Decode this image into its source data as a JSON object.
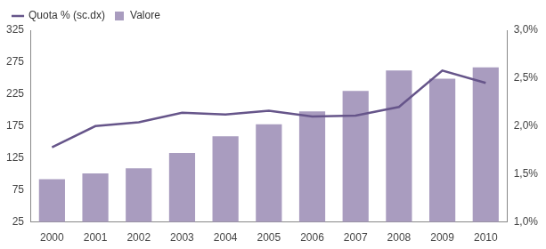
{
  "chart_data": {
    "type": "bar",
    "categories": [
      "2000",
      "2001",
      "2002",
      "2003",
      "2004",
      "2005",
      "2006",
      "2007",
      "2008",
      "2009",
      "2010"
    ],
    "series": [
      {
        "name": "Valore",
        "type": "bar",
        "color": "#a99cbf",
        "values": [
          92,
          101,
          109,
          133,
          159,
          178,
          198,
          230,
          262,
          249,
          267
        ]
      },
      {
        "name": "Quota % (sc.dx)",
        "type": "line",
        "axis": "y2",
        "color": "#66558a",
        "marker": "none",
        "values": [
          1.78,
          2.0,
          2.04,
          2.14,
          2.12,
          2.16,
          2.1,
          2.11,
          2.2,
          2.58,
          2.45
        ]
      }
    ],
    "ylim": [
      25,
      325
    ],
    "yticks": [
      25,
      75,
      125,
      175,
      225,
      275,
      325
    ],
    "y2lim": [
      1.0,
      3.0
    ],
    "y2ticks": [
      {
        "value": 1.0,
        "label": "1,0%"
      },
      {
        "value": 1.5,
        "label": "1,5%"
      },
      {
        "value": 2.0,
        "label": "2,0%"
      },
      {
        "value": 2.5,
        "label": "2,5%"
      },
      {
        "value": 3.0,
        "label": "3,0%"
      }
    ],
    "grid": false,
    "legend": "top-left"
  }
}
